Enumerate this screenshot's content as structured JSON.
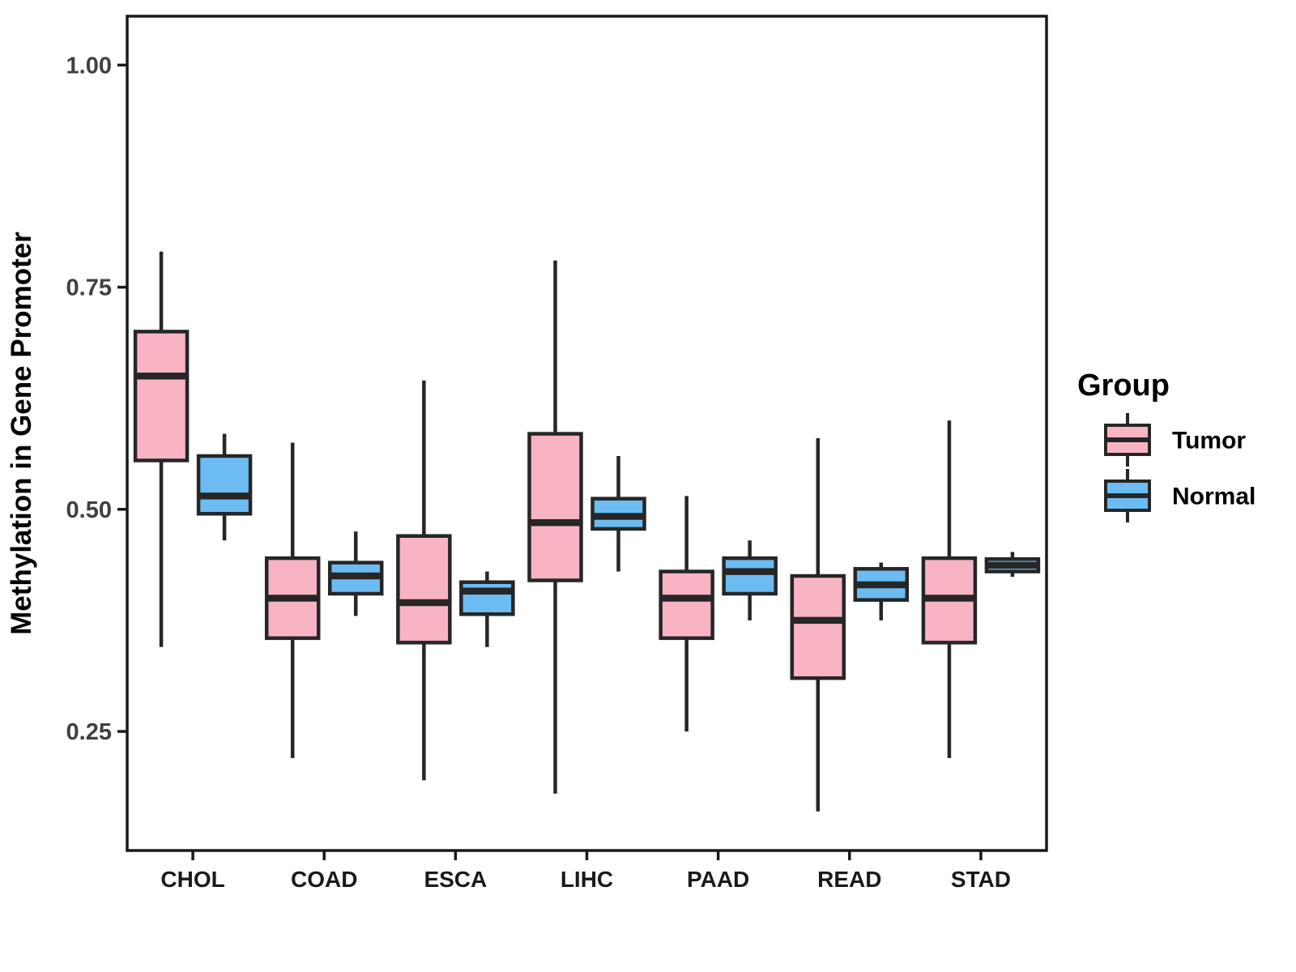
{
  "chart_data": {
    "type": "boxplot",
    "title": "",
    "xlabel": "",
    "ylabel": "Methylation in Gene Promoter",
    "categories": [
      "CHOL",
      "COAD",
      "ESCA",
      "LIHC",
      "PAAD",
      "READ",
      "STAD"
    ],
    "ylim": [
      0.116,
      1.055
    ],
    "grid": "off",
    "yticks": [
      {
        "value": 1.0,
        "label": "1.00"
      },
      {
        "value": 0.75,
        "label": "0.75"
      },
      {
        "value": 0.5,
        "label": "0.50"
      },
      {
        "value": 0.25,
        "label": "0.25"
      }
    ],
    "legend": {
      "title": "Group",
      "position": "right",
      "entries": [
        {
          "name": "Tumor",
          "color": "#F9B4C4"
        },
        {
          "name": "Normal",
          "color": "#6CBCF2"
        }
      ]
    },
    "series": [
      {
        "name": "Tumor",
        "color": "#F9B4C4",
        "boxes": [
          {
            "category": "CHOL",
            "whisker_low": 0.345,
            "q1": 0.555,
            "median": 0.65,
            "q3": 0.7,
            "whisker_high": 0.79
          },
          {
            "category": "COAD",
            "whisker_low": 0.22,
            "q1": 0.355,
            "median": 0.4,
            "q3": 0.445,
            "whisker_high": 0.575
          },
          {
            "category": "ESCA",
            "whisker_low": 0.195,
            "q1": 0.35,
            "median": 0.395,
            "q3": 0.47,
            "whisker_high": 0.645
          },
          {
            "category": "LIHC",
            "whisker_low": 0.18,
            "q1": 0.42,
            "median": 0.485,
            "q3": 0.585,
            "whisker_high": 0.78
          },
          {
            "category": "PAAD",
            "whisker_low": 0.25,
            "q1": 0.355,
            "median": 0.4,
            "q3": 0.43,
            "whisker_high": 0.515
          },
          {
            "category": "READ",
            "whisker_low": 0.16,
            "q1": 0.31,
            "median": 0.375,
            "q3": 0.425,
            "whisker_high": 0.58
          },
          {
            "category": "STAD",
            "whisker_low": 0.22,
            "q1": 0.35,
            "median": 0.4,
            "q3": 0.445,
            "whisker_high": 0.6
          }
        ]
      },
      {
        "name": "Normal",
        "color": "#6CBCF2",
        "boxes": [
          {
            "category": "CHOL",
            "whisker_low": 0.465,
            "q1": 0.495,
            "median": 0.515,
            "q3": 0.56,
            "whisker_high": 0.585
          },
          {
            "category": "COAD",
            "whisker_low": 0.38,
            "q1": 0.405,
            "median": 0.425,
            "q3": 0.44,
            "whisker_high": 0.475
          },
          {
            "category": "ESCA",
            "whisker_low": 0.345,
            "q1": 0.382,
            "median": 0.408,
            "q3": 0.418,
            "whisker_high": 0.43
          },
          {
            "category": "LIHC",
            "whisker_low": 0.43,
            "q1": 0.478,
            "median": 0.492,
            "q3": 0.512,
            "whisker_high": 0.56
          },
          {
            "category": "PAAD",
            "whisker_low": 0.375,
            "q1": 0.405,
            "median": 0.43,
            "q3": 0.445,
            "whisker_high": 0.465
          },
          {
            "category": "READ",
            "whisker_low": 0.375,
            "q1": 0.398,
            "median": 0.415,
            "q3": 0.433,
            "whisker_high": 0.44
          },
          {
            "category": "STAD",
            "whisker_low": 0.424,
            "q1": 0.43,
            "median": 0.437,
            "q3": 0.444,
            "whisker_high": 0.452
          }
        ]
      }
    ],
    "colors": {
      "box_stroke": "#262626",
      "axis_stroke": "#1a1a1a",
      "tick_label": "#404040",
      "category_label": "#1a1a1a",
      "background": "#ffffff"
    }
  }
}
